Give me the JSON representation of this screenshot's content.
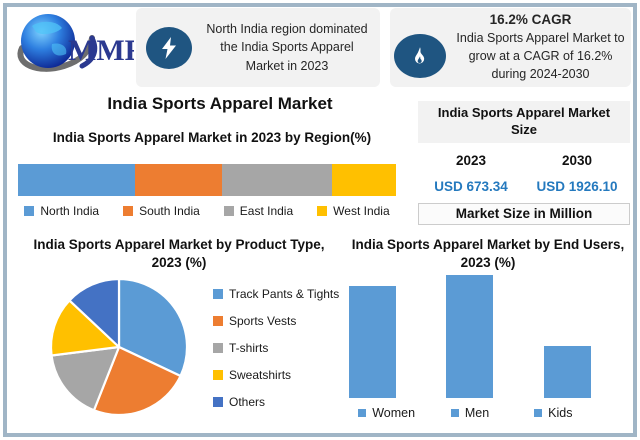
{
  "brand": {
    "logo_text": "MMR"
  },
  "header": {
    "region_callout": {
      "icon": "lightning-icon",
      "text": "North India region dominated the India Sports Apparel Market in 2023"
    },
    "cagr_callout": {
      "icon": "flame-icon",
      "title": "16.2% CAGR",
      "text": "India Sports Apparel Market to grow at a CAGR of 16.2% during 2024-2030"
    }
  },
  "main_title": "India Sports Apparel Market",
  "market_size_panel": {
    "title": "India Sports Apparel Market Size",
    "years": [
      "2023",
      "2030"
    ],
    "values": [
      "USD 673.34",
      "USD 1926.10"
    ],
    "footer": "Market Size in Million",
    "value_color": "#2479BE"
  },
  "colors": {
    "accent_dark_blue": "#1F5581",
    "border_steel_blue": "#A0B5C6",
    "callout_bg": "#F2F2F2",
    "series_blue": "#5B9BD5",
    "series_orange": "#ED7D31",
    "series_gray": "#A6A6A6",
    "series_yellow": "#FFC000",
    "series_navy": "#4472C4"
  },
  "chart_data": [
    {
      "id": "region-share",
      "type": "bar",
      "subtype": "horizontal-stacked",
      "title": "India Sports Apparel Market in 2023 by Region(%)",
      "categories": [
        "North India",
        "South India",
        "East India",
        "West India"
      ],
      "values": [
        31,
        23,
        29,
        17
      ],
      "unit": "%",
      "colors": [
        "#5B9BD5",
        "#ED7D31",
        "#A6A6A6",
        "#FFC000"
      ],
      "legend_position": "bottom",
      "axis_hidden": true
    },
    {
      "id": "product-type",
      "type": "pie",
      "title": "India Sports Apparel Market by Product Type, 2023  (%)",
      "categories": [
        "Track Pants & Tights",
        "Sports Vests",
        "T-shirts",
        "Sweatshirts",
        "Others"
      ],
      "values": [
        32,
        24,
        17,
        14,
        13
      ],
      "unit": "%",
      "colors": [
        "#5B9BD5",
        "#ED7D31",
        "#A6A6A6",
        "#FFC000",
        "#4472C4"
      ],
      "legend_position": "right",
      "start_angle_deg": 0,
      "direction": "clockwise"
    },
    {
      "id": "end-users",
      "type": "bar",
      "subtype": "vertical",
      "title": "India Sports Apparel Market by End Users, 2023  (%)",
      "categories": [
        "Women",
        "Men",
        "Kids"
      ],
      "values": [
        41,
        45,
        19
      ],
      "unit": "%",
      "bar_color": "#5B9BD5",
      "legend_position": "bottom",
      "axis_hidden": true,
      "ylim": [
        0,
        50
      ]
    }
  ]
}
